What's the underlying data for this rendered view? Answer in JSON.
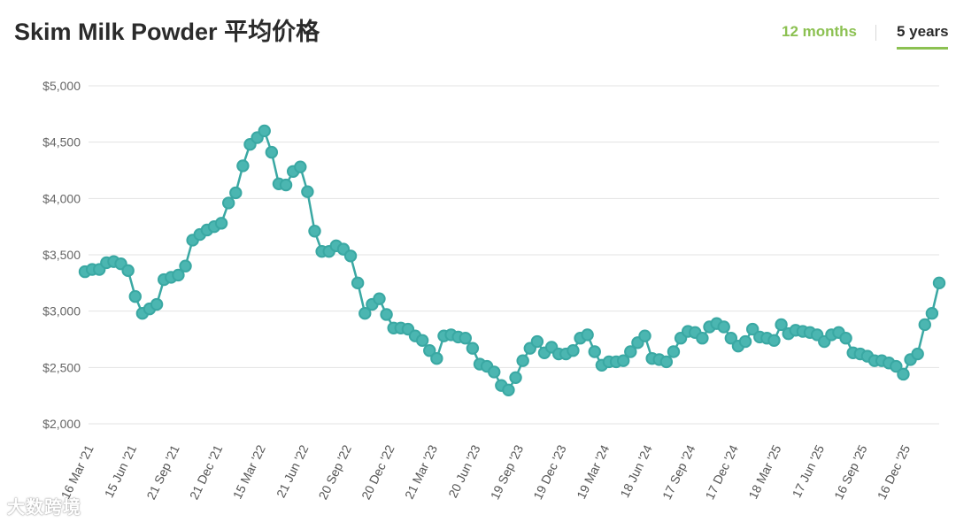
{
  "header": {
    "title": "Skim Milk Powder 平均价格",
    "tabs": [
      {
        "label": "12 months",
        "active": false
      },
      {
        "label": "5 years",
        "active": true
      }
    ]
  },
  "watermark": "大数跨境",
  "colors": {
    "line": "#3aa8a3",
    "marker_fill": "#4bb6b1",
    "active_tab_accent": "#8cc152",
    "grid": "#e3e3e3"
  },
  "chart_data": {
    "type": "line",
    "title": "Skim Milk Powder 平均价格",
    "xlabel": "",
    "ylabel": "",
    "ylim": [
      2000,
      5000
    ],
    "yticks": [
      2000,
      2500,
      3000,
      3500,
      4000,
      4500,
      5000
    ],
    "ytick_labels": [
      "$2,000",
      "$2,500",
      "$3,000",
      "$3,500",
      "$4,000",
      "$4,500",
      "$5,000"
    ],
    "grid": true,
    "legend": "none",
    "xtick_labels": [
      "16 Mar '21",
      "15 Jun '21",
      "21 Sep '21",
      "21 Dec '21",
      "15 Mar '22",
      "21 Jun '22",
      "20 Sep '22",
      "20 Dec '22",
      "21 Mar '23",
      "20 Jun '23",
      "19 Sep '23",
      "19 Dec '23",
      "19 Mar '24",
      "18 Jun '24",
      "17 Sep '24",
      "17 Dec '24",
      "18 Mar '25",
      "17 Jun '25",
      "16 Sep '25",
      "16 Dec '25"
    ],
    "series": [
      {
        "values": [
          3350,
          3370,
          3370,
          3430,
          3440,
          3420,
          3360,
          3130,
          2980,
          3020,
          3060,
          3280,
          3300,
          3320,
          3400,
          3630,
          3680,
          3720,
          3750,
          3780,
          3960,
          4050,
          4290,
          4480,
          4540,
          4600,
          4410,
          4130,
          4120,
          4240,
          4280,
          4060,
          3710,
          3530,
          3530,
          3580,
          3550,
          3490,
          3250,
          2980,
          3060,
          3110,
          2970,
          2850,
          2850,
          2840,
          2780,
          2740,
          2650,
          2580,
          2780,
          2790,
          2770,
          2760,
          2670,
          2530,
          2510,
          2460,
          2340,
          2300,
          2410,
          2560,
          2670,
          2730,
          2630,
          2680,
          2620,
          2620,
          2650,
          2760,
          2790,
          2640,
          2520,
          2550,
          2550,
          2560,
          2640,
          2720,
          2780,
          2580,
          2570,
          2550,
          2640,
          2760,
          2820,
          2810,
          2760,
          2860,
          2890,
          2860,
          2760,
          2690,
          2730,
          2840,
          2770,
          2760,
          2740,
          2880,
          2800,
          2830,
          2820,
          2810,
          2790,
          2730,
          2790,
          2810,
          2760,
          2630,
          2620,
          2600,
          2560,
          2560,
          2540,
          2510,
          2440,
          2570,
          2620,
          2880,
          2980,
          3250
        ]
      }
    ]
  }
}
